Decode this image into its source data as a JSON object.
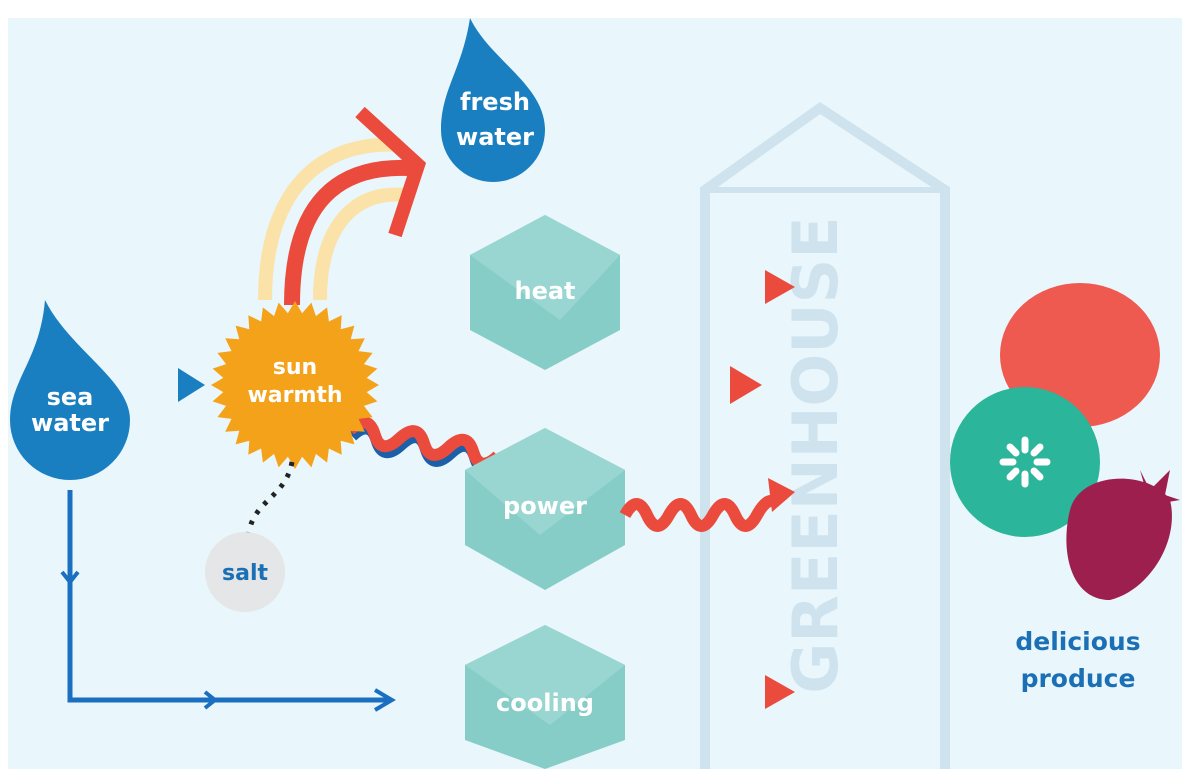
{
  "nodes": [
    {
      "id": "sea",
      "label": [
        "sea",
        "water"
      ]
    },
    {
      "id": "sun",
      "label": [
        "sun",
        "warmth"
      ]
    },
    {
      "id": "fresh",
      "label": [
        "fresh",
        "water"
      ]
    },
    {
      "id": "heat",
      "label": [
        "heat"
      ]
    },
    {
      "id": "power",
      "label": [
        "power"
      ]
    },
    {
      "id": "cooling",
      "label": [
        "cooling"
      ]
    },
    {
      "id": "salt",
      "label": [
        "salt"
      ]
    },
    {
      "id": "greenhouse",
      "label": [
        "GREENHOUSE"
      ]
    },
    {
      "id": "produce",
      "label": [
        "delicious",
        "produce"
      ]
    }
  ]
}
